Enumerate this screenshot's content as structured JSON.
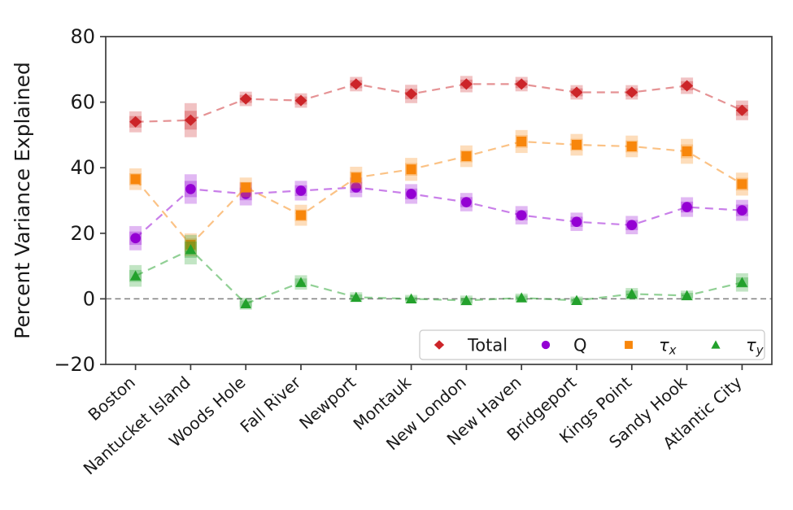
{
  "figure": {
    "background": "#ffffff",
    "axis_color": "#3c3c3c",
    "text_color": "#1a1a1a",
    "zero_line_color": "#808080",
    "legend_border_color": "#c9c9c9"
  },
  "chart_data": {
    "type": "line",
    "title": "",
    "xlabel": "",
    "ylabel": "Percent Variance Explained",
    "ylim": [
      -20,
      80
    ],
    "yticks": [
      -20,
      0,
      20,
      40,
      60,
      80
    ],
    "grid": false,
    "zero_reference_line": true,
    "legend_position": "lower-right-inside",
    "marker_style": "point-with-shaded-error-box",
    "line_style": "dashed",
    "categories": [
      "Boston",
      "Nantucket Island",
      "Woods Hole",
      "Fall River",
      "Newport",
      "Montauk",
      "New London",
      "New Haven",
      "Bridgeport",
      "Kings Point",
      "Sandy Hook",
      "Atlantic City"
    ],
    "series": [
      {
        "name": "Total",
        "legend_label": "Total",
        "legend_sub": "",
        "marker": "diamond",
        "color": "#cc2529",
        "values": [
          54,
          54.5,
          61,
          60.5,
          65.5,
          62.5,
          65.5,
          65.5,
          63,
          63,
          65,
          57.5
        ],
        "errors": [
          3.2,
          5.2,
          2.2,
          2.2,
          2.2,
          2.8,
          2.5,
          2.2,
          2.2,
          2.2,
          2.5,
          3.0
        ]
      },
      {
        "name": "Q",
        "legend_label": "Q",
        "legend_sub": "",
        "marker": "circle",
        "color": "#9400d3",
        "values": [
          18.5,
          33.5,
          32,
          33,
          34,
          32,
          29.5,
          25.5,
          23.5,
          22.5,
          28,
          27
        ],
        "errors": [
          3.7,
          4.5,
          3.5,
          3.0,
          3.0,
          3.0,
          2.8,
          2.8,
          2.8,
          2.8,
          3.0,
          3.2
        ]
      },
      {
        "name": "tau_x",
        "legend_label": "τ",
        "legend_sub": "x",
        "marker": "square",
        "color": "#f8860b",
        "values": [
          36.5,
          16.5,
          34,
          25.5,
          37,
          39.5,
          43.5,
          48,
          47,
          46.5,
          45,
          35
        ],
        "errors": [
          3.3,
          3.5,
          3.0,
          3.2,
          3.3,
          3.5,
          3.3,
          3.5,
          3.3,
          3.3,
          3.8,
          3.5
        ]
      },
      {
        "name": "tau_y",
        "legend_label": "τ",
        "legend_sub": "y",
        "marker": "triangle",
        "color": "#23a12c",
        "values": [
          7,
          15,
          -1.5,
          5,
          0.5,
          0,
          -0.5,
          0.3,
          -0.5,
          1.5,
          1,
          5
        ],
        "errors": [
          3.3,
          4.5,
          1.8,
          2.2,
          1.5,
          1.2,
          1.5,
          1.3,
          1.2,
          1.8,
          1.5,
          2.8
        ]
      }
    ]
  }
}
